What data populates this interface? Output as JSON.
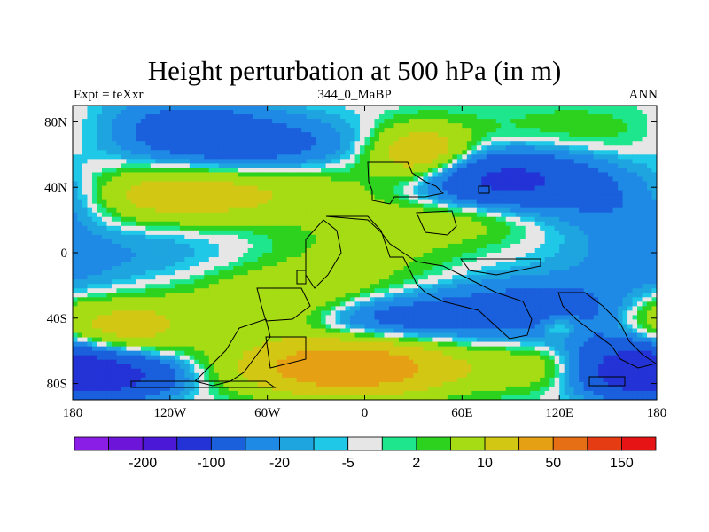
{
  "chart_data": {
    "type": "heatmap",
    "title": "Height perturbation at 500 hPa (in m)",
    "left_string": "Expt = teXxr",
    "center_string": "344_0_MaBP",
    "right_string": "ANN",
    "x_range": [
      -180,
      180
    ],
    "y_range": [
      -90,
      90
    ],
    "x_ticks": [
      {
        "value": -180,
        "label": "180"
      },
      {
        "value": -120,
        "label": "120W"
      },
      {
        "value": -60,
        "label": "60W"
      },
      {
        "value": 0,
        "label": "0"
      },
      {
        "value": 60,
        "label": "60E"
      },
      {
        "value": 120,
        "label": "120E"
      },
      {
        "value": 180,
        "label": "180"
      }
    ],
    "y_ticks": [
      {
        "value": 80,
        "label": "80N"
      },
      {
        "value": 40,
        "label": "40N"
      },
      {
        "value": 0,
        "label": "0"
      },
      {
        "value": -40,
        "label": "40S"
      },
      {
        "value": -80,
        "label": "80S"
      }
    ],
    "colorbar": {
      "colors": [
        "#8a1ee6",
        "#6e15da",
        "#4a18d6",
        "#2333d6",
        "#1a5fdc",
        "#1e8ae6",
        "#1ea5e0",
        "#1ec8e6",
        "#e6e6e6",
        "#1ee68c",
        "#2dd21e",
        "#a5dc14",
        "#d2c814",
        "#e6a014",
        "#e66e14",
        "#e63c14",
        "#e61414"
      ],
      "labels": [
        {
          "after_index": 1,
          "text": "-200"
        },
        {
          "after_index": 3,
          "text": "-100"
        },
        {
          "after_index": 5,
          "text": "-20"
        },
        {
          "after_index": 7,
          "text": "-5"
        },
        {
          "after_index": 9,
          "text": "2"
        },
        {
          "after_index": 11,
          "text": "10"
        },
        {
          "after_index": 13,
          "text": "50"
        },
        {
          "after_index": 15,
          "text": "150"
        }
      ]
    },
    "field_features": [
      {
        "lon": -110,
        "lat": 75,
        "value": -30,
        "spread_lon": 35,
        "spread_lat": 14
      },
      {
        "lon": -55,
        "lat": 65,
        "value": -25,
        "spread_lon": 40,
        "spread_lat": 12
      },
      {
        "lon": -115,
        "lat": 35,
        "value": 40,
        "spread_lon": 45,
        "spread_lat": 12
      },
      {
        "lon": -25,
        "lat": 40,
        "value": 12,
        "spread_lon": 40,
        "spread_lat": 14
      },
      {
        "lon": 35,
        "lat": 60,
        "value": 50,
        "spread_lon": 22,
        "spread_lat": 12
      },
      {
        "lon": 130,
        "lat": 75,
        "value": 8,
        "spread_lon": 50,
        "spread_lat": 12
      },
      {
        "lon": 85,
        "lat": 45,
        "value": -60,
        "spread_lon": 40,
        "spread_lat": 12
      },
      {
        "lon": 150,
        "lat": 30,
        "value": -15,
        "spread_lon": 30,
        "spread_lat": 12
      },
      {
        "lon": -175,
        "lat": 35,
        "value": -10,
        "spread_lon": 20,
        "spread_lat": 12
      },
      {
        "lon": -145,
        "lat": 0,
        "value": -10,
        "spread_lon": 60,
        "spread_lat": 16
      },
      {
        "lon": 0,
        "lat": 0,
        "value": 12,
        "spread_lon": 45,
        "spread_lat": 20
      },
      {
        "lon": 55,
        "lat": 20,
        "value": 15,
        "spread_lon": 35,
        "spread_lat": 10
      },
      {
        "lon": 165,
        "lat": -5,
        "value": -8,
        "spread_lon": 25,
        "spread_lat": 20
      },
      {
        "lon": -50,
        "lat": -30,
        "value": 25,
        "spread_lon": 45,
        "spread_lat": 15
      },
      {
        "lon": -150,
        "lat": -45,
        "value": 35,
        "spread_lon": 30,
        "spread_lat": 12
      },
      {
        "lon": 10,
        "lat": -40,
        "value": -30,
        "spread_lon": 35,
        "spread_lat": 10
      },
      {
        "lon": 100,
        "lat": -35,
        "value": -30,
        "spread_lon": 50,
        "spread_lat": 14
      },
      {
        "lon": 120,
        "lat": -45,
        "value": 20,
        "spread_lon": 8,
        "spread_lat": 5
      },
      {
        "lon": 175,
        "lat": -35,
        "value": 10,
        "spread_lon": 15,
        "spread_lat": 10
      },
      {
        "lon": -160,
        "lat": -75,
        "value": -70,
        "spread_lon": 30,
        "spread_lat": 10
      },
      {
        "lon": -10,
        "lat": -70,
        "value": 80,
        "spread_lon": 45,
        "spread_lat": 12
      },
      {
        "lon": 160,
        "lat": -70,
        "value": -60,
        "spread_lon": 25,
        "spread_lat": 12
      },
      {
        "lon": 110,
        "lat": -70,
        "value": 20,
        "spread_lon": 30,
        "spread_lat": 10
      }
    ]
  }
}
